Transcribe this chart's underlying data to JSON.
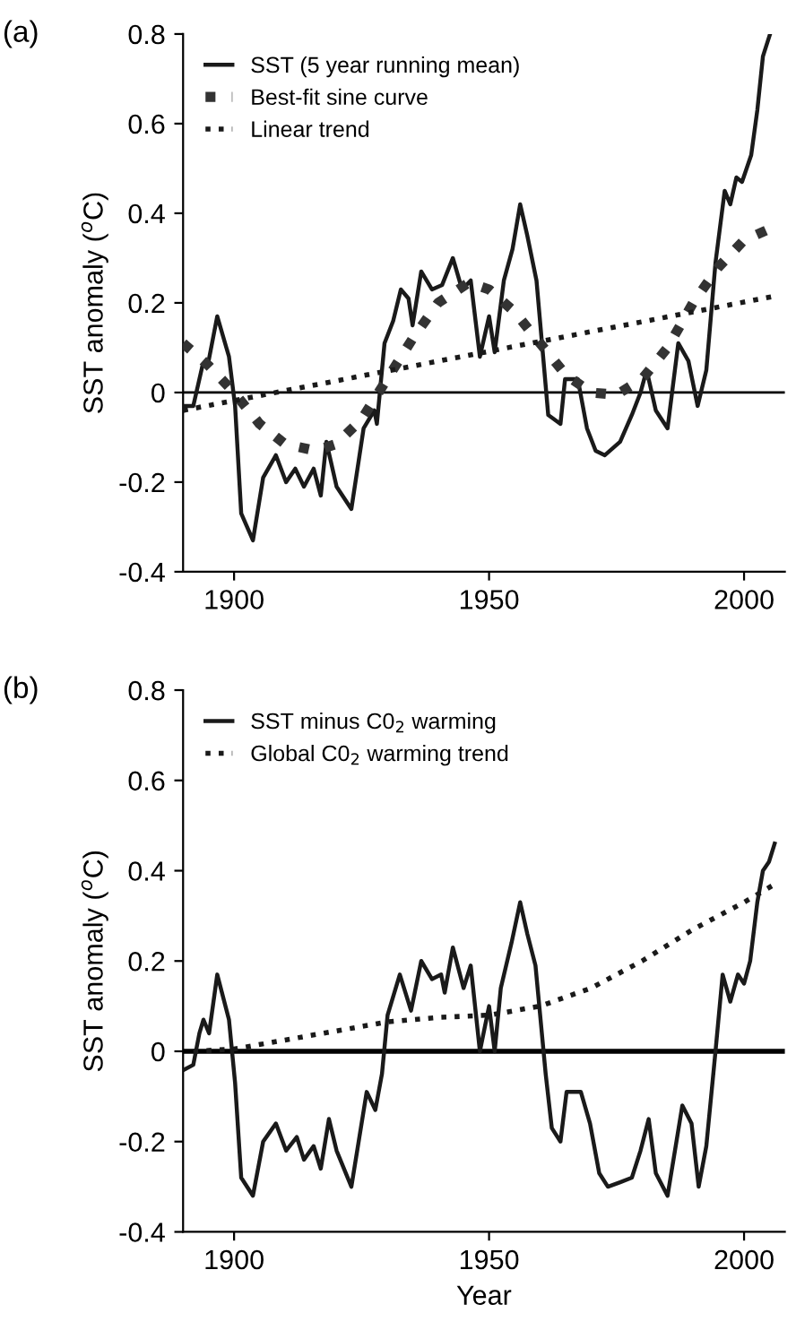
{
  "chart_data": [
    {
      "type": "line",
      "title": "(a)",
      "ylabel": "SST anomaly ($^{o}$C)",
      "xlim": [
        1890,
        2008
      ],
      "xticks": [
        1900,
        1950,
        2000
      ],
      "ylim": [
        -0.4,
        0.8
      ],
      "yticks": [
        -0.4,
        -0.2,
        0,
        0.2,
        0.4,
        0.6,
        0.8
      ],
      "grid": false,
      "legend": "top left",
      "marker": "none",
      "ref_lines": [
        {
          "axis": "y",
          "value": 0,
          "color": "#000000"
        }
      ],
      "series": [
        {
          "name": "SST (5 year running mean)",
          "color": "#1a1a1a",
          "line_style": "solid",
          "x": [
            1890.3,
            1892,
            1893.8,
            1895,
            1896.7,
            1899,
            1900.2,
            1901.4,
            1903.7,
            1905.7,
            1908.2,
            1910.2,
            1912,
            1913.7,
            1915.6,
            1917,
            1918.1,
            1920.1,
            1923,
            1925.4,
            1927.5,
            1928,
            1929.5,
            1931.2,
            1932.7,
            1934.2,
            1935,
            1936.7,
            1938.8,
            1940.8,
            1942.9,
            1944.7,
            1946.4,
            1948.2,
            1950,
            1951.1,
            1952.9,
            1954.6,
            1956.1,
            1957.5,
            1959.3,
            1961.6,
            1964,
            1964.9,
            1967.4,
            1969.2,
            1970.9,
            1972.7,
            1975.7,
            1978,
            1979.7,
            1980.9,
            1982.7,
            1985,
            1987.1,
            1989.1,
            1990.9,
            1992.6,
            1994.4,
            1996.2,
            1997.3,
            1998.5,
            1999.6,
            2001.4,
            2002.6,
            2003.7,
            2005.1
          ],
          "values": [
            -0.03,
            -0.03,
            0.06,
            0.07,
            0.17,
            0.08,
            -0.03,
            -0.27,
            -0.33,
            -0.19,
            -0.14,
            -0.2,
            -0.17,
            -0.21,
            -0.17,
            -0.23,
            -0.11,
            -0.21,
            -0.26,
            -0.08,
            -0.04,
            -0.07,
            0.11,
            0.16,
            0.23,
            0.21,
            0.15,
            0.27,
            0.23,
            0.24,
            0.3,
            0.23,
            0.25,
            0.08,
            0.17,
            0.09,
            0.25,
            0.32,
            0.42,
            0.35,
            0.25,
            -0.05,
            -0.07,
            0.03,
            0.03,
            -0.08,
            -0.13,
            -0.14,
            -0.11,
            -0.05,
            0.0,
            0.05,
            -0.04,
            -0.08,
            0.11,
            0.07,
            -0.03,
            0.05,
            0.29,
            0.45,
            0.42,
            0.48,
            0.47,
            0.53,
            0.63,
            0.75,
            0.8
          ]
        },
        {
          "name": "Best-fit sine curve",
          "color": "#333333",
          "line_style": "dotted",
          "x": [
            1890,
            1895,
            1900,
            1905,
            1910,
            1916,
            1920,
            1925,
            1930,
            1935,
            1940,
            1946,
            1950,
            1955,
            1960,
            1965,
            1970,
            1975,
            1980,
            1985,
            1990,
            1995,
            2000,
            2006
          ],
          "values": [
            0.11,
            0.06,
            0.0,
            -0.07,
            -0.115,
            -0.13,
            -0.115,
            -0.06,
            0.03,
            0.12,
            0.2,
            0.245,
            0.23,
            0.18,
            0.11,
            0.04,
            0.0,
            -0.005,
            0.03,
            0.1,
            0.2,
            0.28,
            0.34,
            0.37
          ]
        },
        {
          "name": "Linear trend",
          "color": "#1a1a1a",
          "line_style": "dotted",
          "x": [
            1890,
            2006
          ],
          "values": [
            -0.04,
            0.215
          ]
        }
      ]
    },
    {
      "type": "line",
      "title": "(b)",
      "xlabel": "Year",
      "ylabel": "SST anomaly ($^{o}$C)",
      "xlim": [
        1890,
        2008
      ],
      "xticks": [
        1900,
        1950,
        2000
      ],
      "ylim": [
        -0.4,
        0.8
      ],
      "yticks": [
        -0.4,
        -0.2,
        0,
        0.2,
        0.4,
        0.6,
        0.8
      ],
      "grid": false,
      "legend": "top left",
      "marker": "none",
      "ref_lines": [
        {
          "axis": "y",
          "value": 0,
          "color": "#000000"
        }
      ],
      "series": [
        {
          "name": "SST minus C0$_{2}$ warming",
          "color": "#1a1a1a",
          "line_style": "solid",
          "x": [
            1890.3,
            1892,
            1893.2,
            1894,
            1895.1,
            1896.7,
            1899,
            1900.2,
            1901.4,
            1903.7,
            1905.7,
            1908.2,
            1910.2,
            1912.3,
            1913.7,
            1915.6,
            1917,
            1918.6,
            1920.1,
            1923,
            1926,
            1927.7,
            1929,
            1930.1,
            1932.5,
            1934.7,
            1936.7,
            1938.8,
            1940.6,
            1941.3,
            1942.9,
            1945,
            1946.4,
            1948.2,
            1950,
            1951.1,
            1952.3,
            1954.4,
            1956.1,
            1957.5,
            1959.1,
            1961.1,
            1962.3,
            1964,
            1965.2,
            1968,
            1969.8,
            1971.6,
            1973.3,
            1975.7,
            1978,
            1979.7,
            1981.3,
            1982.7,
            1985,
            1987.9,
            1989.7,
            1991.1,
            1992.6,
            1994.4,
            1995.8,
            1997.3,
            1998.8,
            2000,
            2001.2,
            2002.6,
            2003.7,
            2004.9,
            2006
          ],
          "values": [
            -0.04,
            -0.03,
            0.04,
            0.07,
            0.04,
            0.17,
            0.07,
            -0.07,
            -0.28,
            -0.32,
            -0.2,
            -0.16,
            -0.22,
            -0.19,
            -0.24,
            -0.21,
            -0.26,
            -0.15,
            -0.22,
            -0.3,
            -0.09,
            -0.13,
            -0.05,
            0.08,
            0.17,
            0.09,
            0.2,
            0.16,
            0.17,
            0.13,
            0.23,
            0.14,
            0.19,
            0.0,
            0.1,
            0.0,
            0.14,
            0.24,
            0.33,
            0.26,
            0.19,
            -0.05,
            -0.17,
            -0.2,
            -0.09,
            -0.09,
            -0.16,
            -0.27,
            -0.3,
            -0.29,
            -0.28,
            -0.22,
            -0.15,
            -0.27,
            -0.32,
            -0.12,
            -0.16,
            -0.3,
            -0.21,
            0.0,
            0.17,
            0.11,
            0.17,
            0.15,
            0.2,
            0.33,
            0.4,
            0.42,
            0.46
          ]
        },
        {
          "name": "Global C0$_{2}$ warming trend",
          "color": "#1a1a1a",
          "line_style": "dotted",
          "x": [
            1892,
            1900,
            1910,
            1920,
            1930,
            1940,
            1950,
            1960,
            1970,
            1980,
            1990,
            2000,
            2006
          ],
          "values": [
            0.0,
            0.005,
            0.025,
            0.045,
            0.065,
            0.075,
            0.08,
            0.1,
            0.14,
            0.2,
            0.27,
            0.33,
            0.37
          ]
        }
      ]
    }
  ]
}
